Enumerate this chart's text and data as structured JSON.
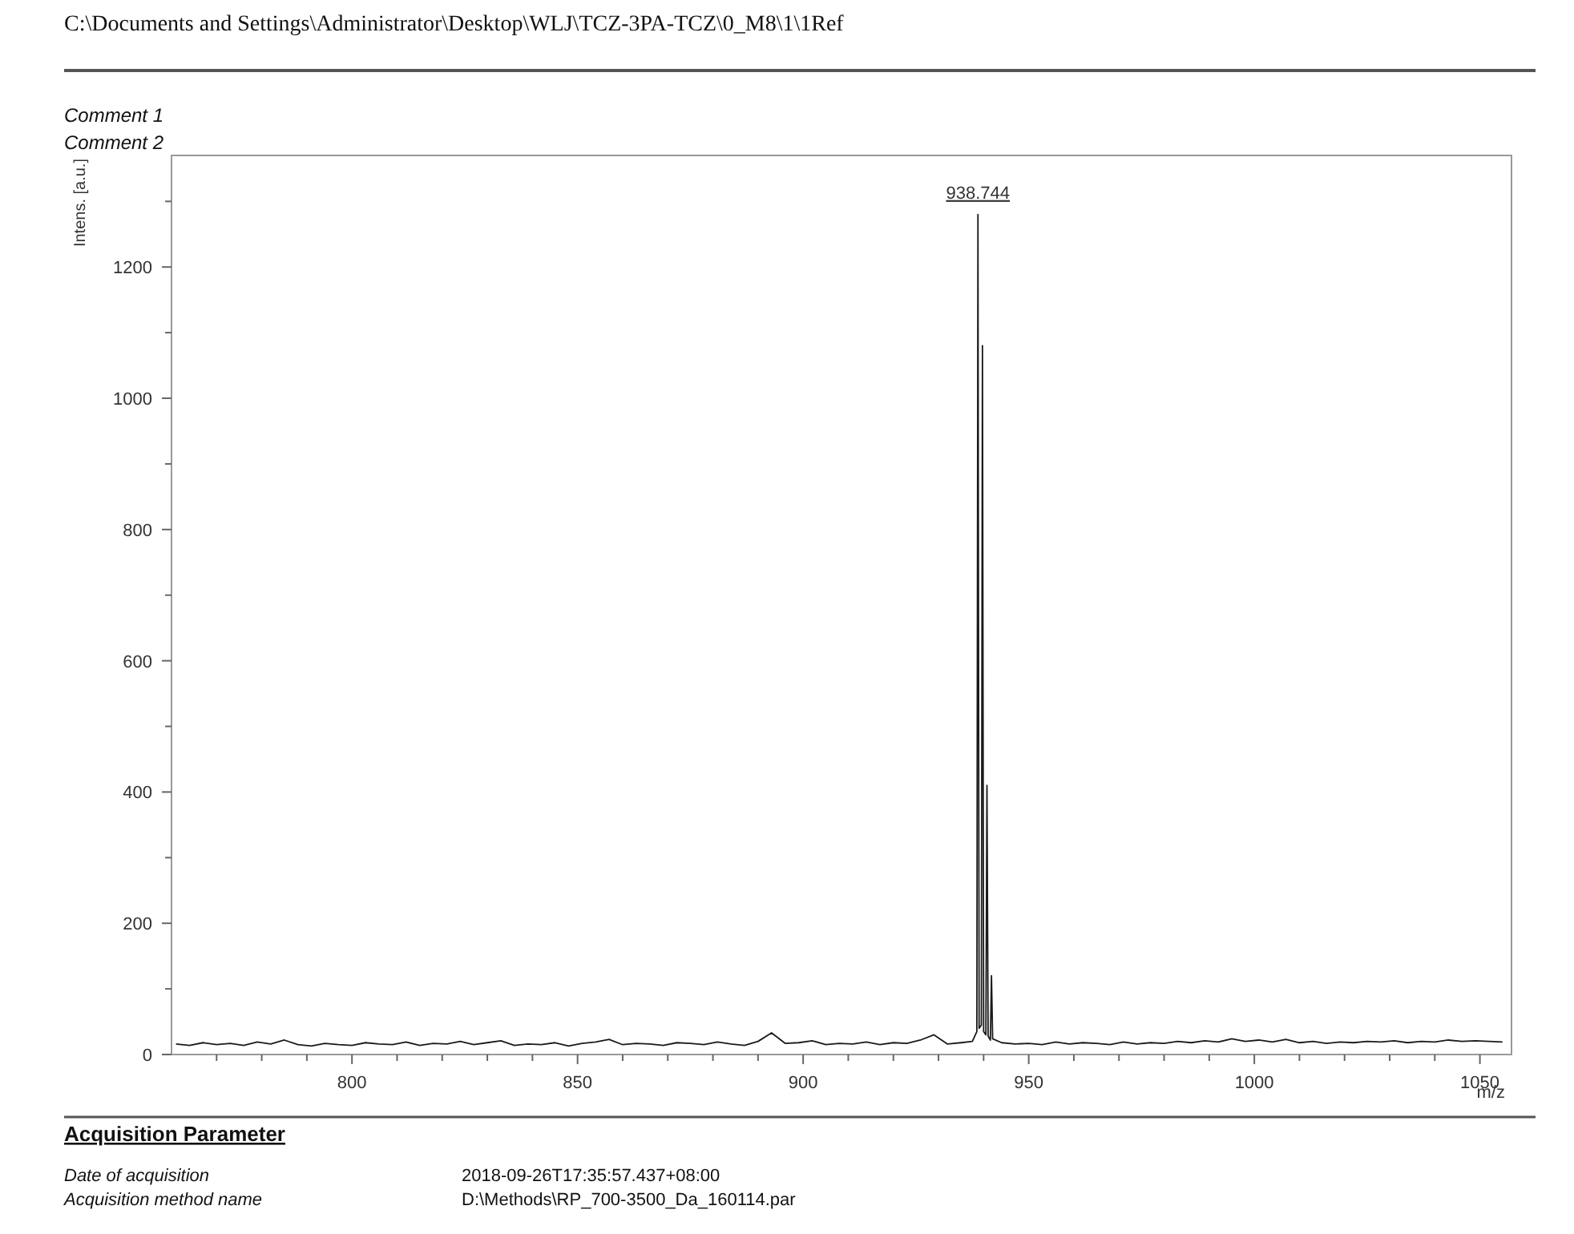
{
  "chart_data": {
    "type": "line",
    "xlabel": "m/z",
    "ylabel": "Intens. [a.u.]",
    "annotations": [
      "C:\\Documents and Settings\\Administrator\\Desktop\\WLJ\\TCZ-3PA-TCZ\\0_M8\\1\\1Ref",
      "Comment 1",
      "Comment 2",
      "Acquisition Parameter",
      "Date of acquisition",
      "2018-09-26T17:35:57.437+08:00",
      "Acquisition method name",
      "D:\\Methods\\RP_700-3500_Da_160114.par",
      {
        "text": "938.744",
        "x": 938.744,
        "y": 1280
      }
    ],
    "series": [
      {
        "color": "#1a1a1a",
        "x": [
          761,
          764,
          767,
          770,
          773,
          776,
          779,
          782,
          785,
          788,
          791,
          794,
          797,
          800,
          803,
          806,
          809,
          812,
          815,
          818,
          821,
          824,
          827,
          830,
          833,
          836,
          839,
          842,
          845,
          848,
          851,
          854,
          857,
          860,
          863,
          866,
          869,
          872,
          875,
          878,
          881,
          884,
          887,
          890,
          893,
          896,
          899,
          902,
          905,
          908,
          911,
          914,
          917,
          920,
          923,
          926,
          929,
          932,
          935,
          937.5,
          938.5,
          938.744,
          939.0,
          939.5,
          939.74,
          940.0,
          940.5,
          940.74,
          941.0,
          941.5,
          941.74,
          942.0,
          944,
          947,
          950,
          953,
          956,
          959,
          962,
          965,
          968,
          971,
          974,
          977,
          980,
          983,
          986,
          989,
          992,
          995,
          998,
          1001,
          1004,
          1007,
          1010,
          1013,
          1016,
          1019,
          1022,
          1025,
          1028,
          1031,
          1034,
          1037,
          1040,
          1043,
          1046,
          1049,
          1052,
          1055
        ],
        "values": [
          16,
          14,
          18,
          15,
          17,
          14,
          19,
          16,
          22,
          15,
          13,
          17,
          15,
          14,
          18,
          16,
          15,
          19,
          14,
          17,
          16,
          20,
          15,
          18,
          21,
          14,
          16,
          15,
          18,
          13,
          17,
          19,
          23,
          15,
          17,
          16,
          14,
          18,
          17,
          15,
          19,
          16,
          14,
          20,
          33,
          17,
          18,
          21,
          15,
          17,
          16,
          19,
          15,
          18,
          17,
          22,
          30,
          16,
          18,
          20,
          35,
          1280,
          40,
          45,
          1080,
          35,
          30,
          410,
          28,
          22,
          120,
          24,
          18,
          16,
          17,
          15,
          19,
          16,
          18,
          17,
          15,
          19,
          16,
          18,
          17,
          20,
          18,
          21,
          19,
          24,
          20,
          22,
          19,
          23,
          18,
          20,
          17,
          19,
          18,
          20,
          19,
          21,
          18,
          20,
          19,
          22,
          20,
          21,
          20,
          19
        ]
      }
    ],
    "xlim": [
      760,
      1057
    ],
    "xticks": [
      {
        "value": 770,
        "label": null
      },
      {
        "value": 780,
        "label": null
      },
      {
        "value": 790,
        "label": null
      },
      800,
      {
        "value": 810,
        "label": null
      },
      {
        "value": 820,
        "label": null
      },
      {
        "value": 830,
        "label": null
      },
      {
        "value": 840,
        "label": null
      },
      850,
      {
        "value": 860,
        "label": null
      },
      {
        "value": 870,
        "label": null
      },
      {
        "value": 880,
        "label": null
      },
      {
        "value": 890,
        "label": null
      },
      900,
      {
        "value": 910,
        "label": null
      },
      {
        "value": 920,
        "label": null
      },
      {
        "value": 930,
        "label": null
      },
      {
        "value": 940,
        "label": null
      },
      950,
      {
        "value": 960,
        "label": null
      },
      {
        "value": 970,
        "label": null
      },
      {
        "value": 980,
        "label": null
      },
      {
        "value": 990,
        "label": null
      },
      1000,
      {
        "value": 1010,
        "label": null
      },
      {
        "value": 1020,
        "label": null
      },
      {
        "value": 1030,
        "label": null
      },
      {
        "value": 1040,
        "label": null
      },
      1050
    ],
    "ylim": [
      0,
      1370
    ],
    "yticks": [
      0,
      {
        "value": 100,
        "label": null
      },
      200,
      {
        "value": 300,
        "label": null
      },
      400,
      {
        "value": 500,
        "label": null
      },
      600,
      {
        "value": 700,
        "label": null
      },
      800,
      {
        "value": 900,
        "label": null
      },
      1000,
      {
        "value": 1100,
        "label": null
      },
      1200,
      {
        "value": 1300,
        "label": null
      }
    ],
    "grid": false,
    "marker": "none",
    "line_style": "solid"
  }
}
